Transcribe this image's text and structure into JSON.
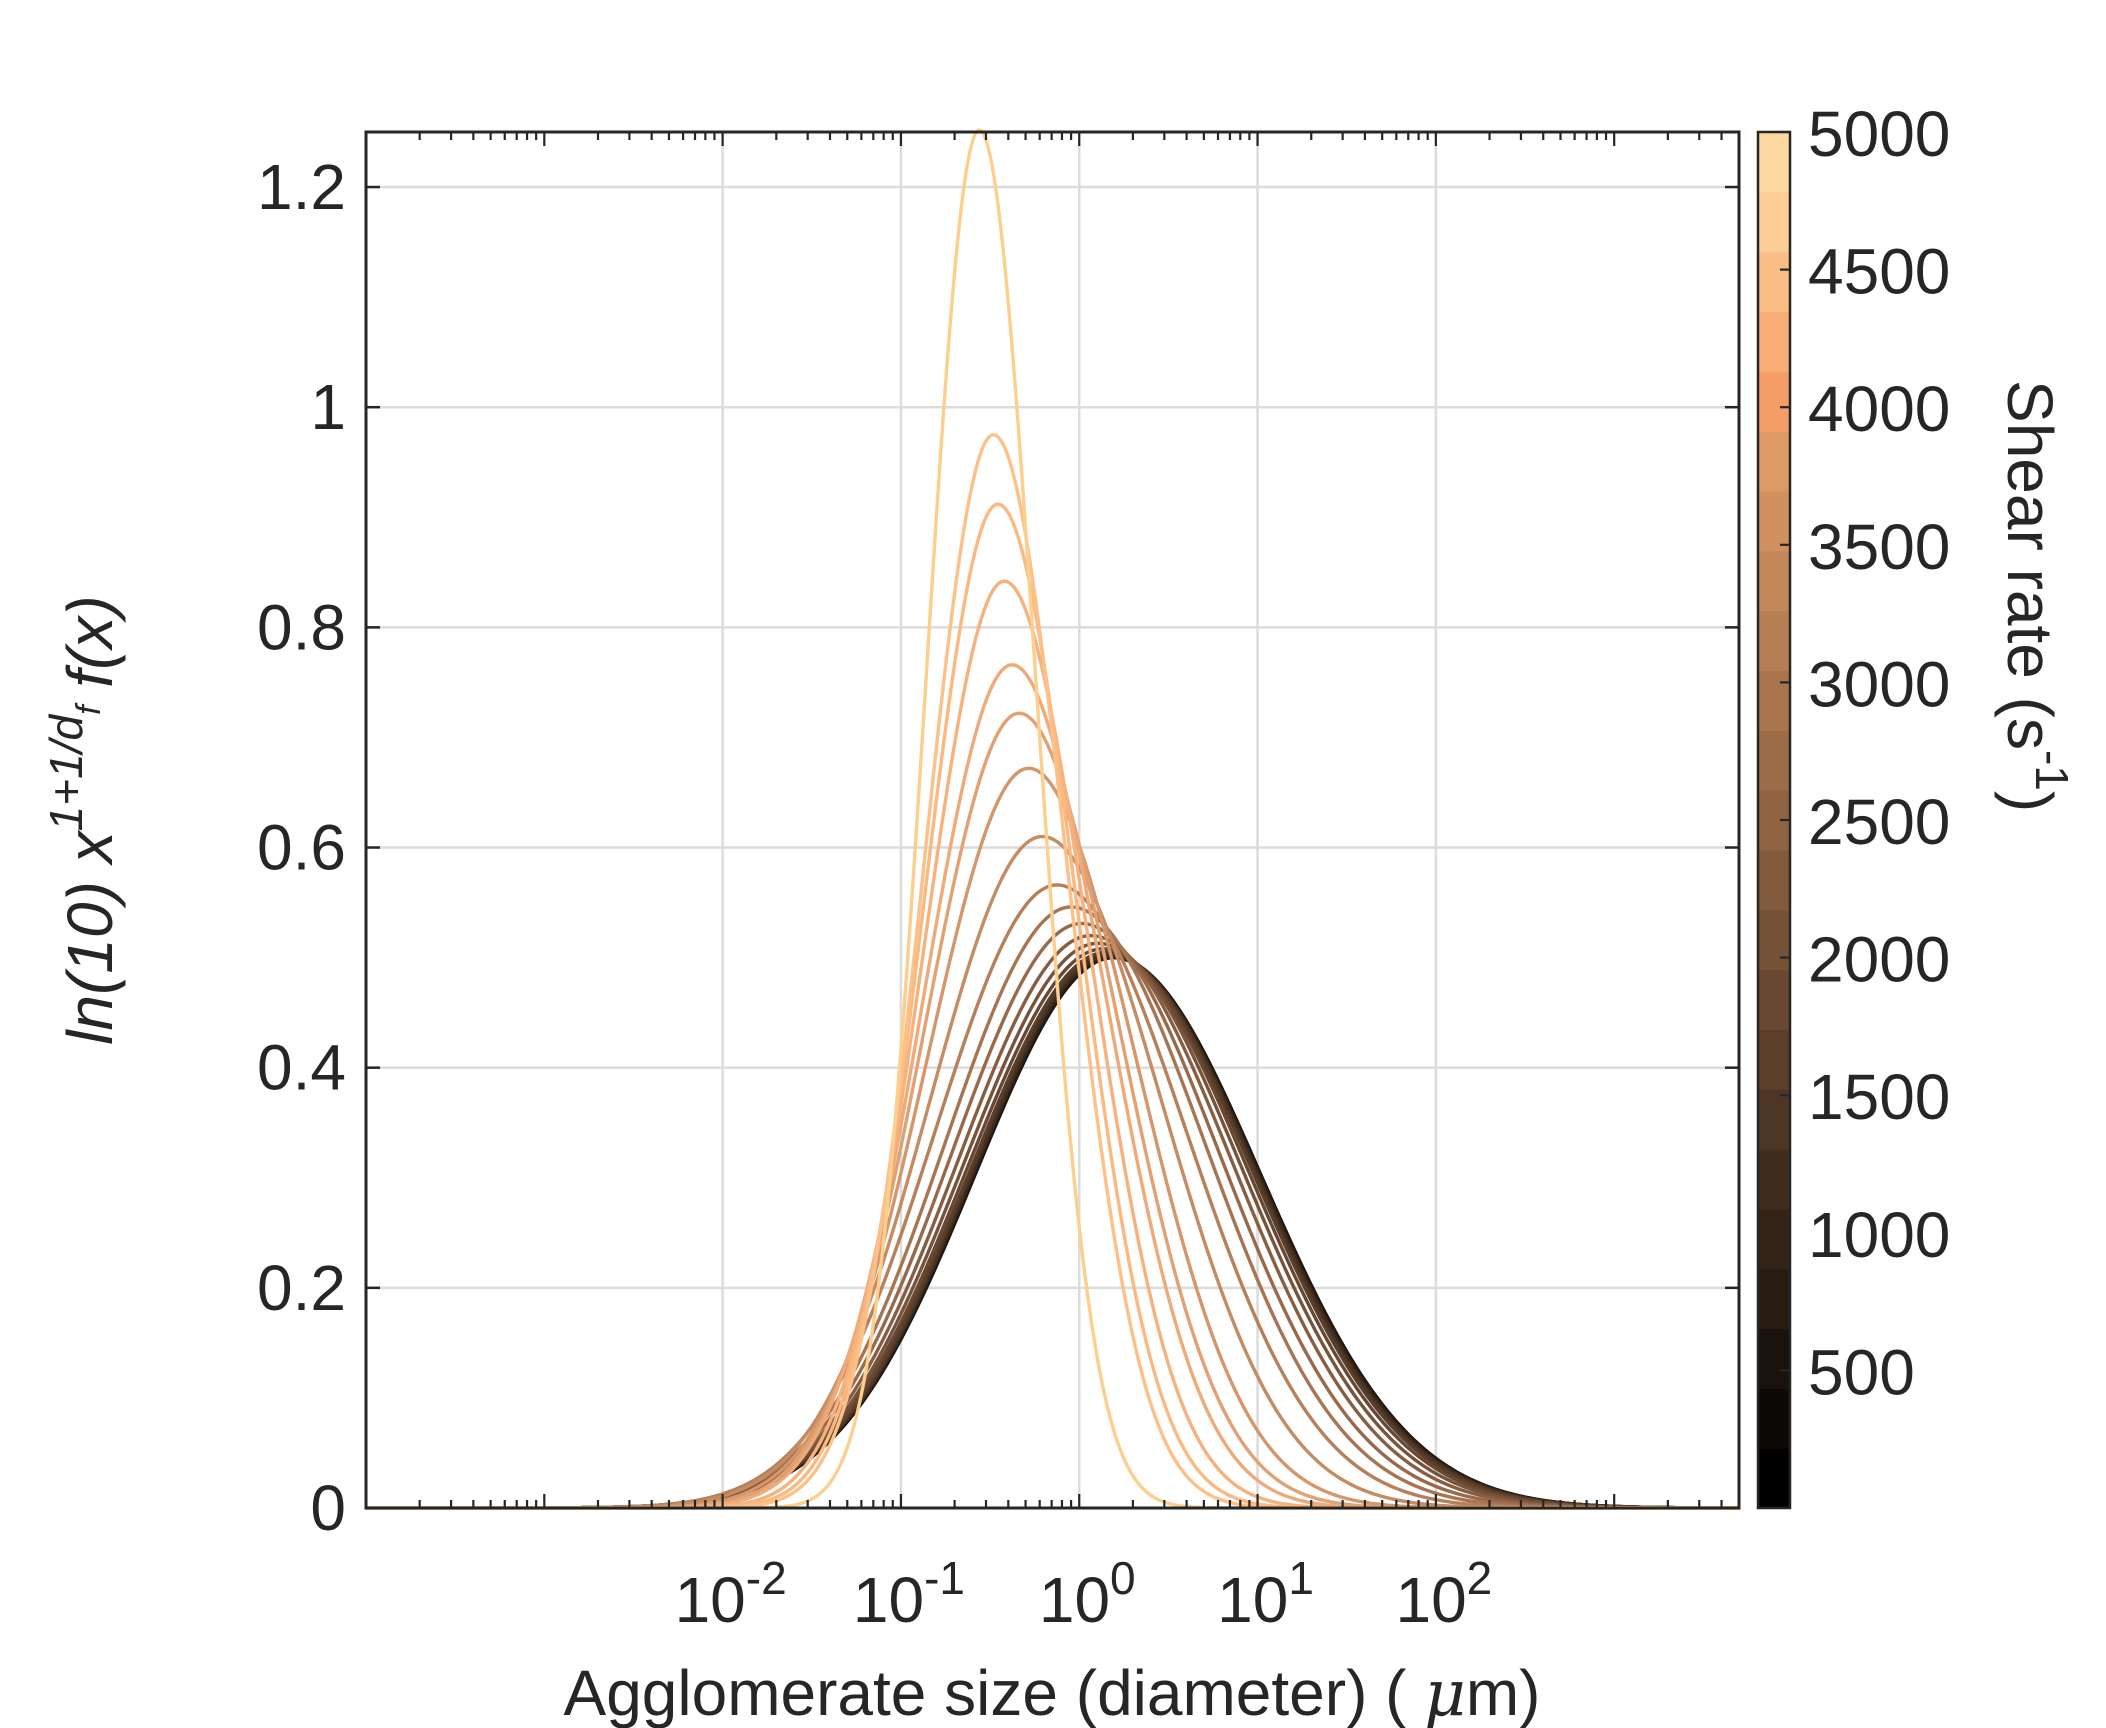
{
  "chart_data": {
    "type": "line",
    "x_scale": "log",
    "xlim_log10": [
      -4,
      3.7
    ],
    "ylim": [
      0,
      1.25
    ],
    "grid": true,
    "legend": "none",
    "xlabel_prefix": "Agglomerate size (diameter) ( ",
    "xlabel_mu": "μ",
    "xlabel_suffix": "m)",
    "ylabel": {
      "main": "ln(10) x",
      "superscript": "1+1/d",
      "super_sub": "f",
      "tail": " f(x)"
    },
    "x_ticks": [
      {
        "base": "10",
        "exp": "-2",
        "log10": -2
      },
      {
        "base": "10",
        "exp": "-1",
        "log10": -1
      },
      {
        "base": "10",
        "exp": "0",
        "log10": 0
      },
      {
        "base": "10",
        "exp": "1",
        "log10": 1
      },
      {
        "base": "10",
        "exp": "2",
        "log10": 2
      }
    ],
    "y_ticks": [
      {
        "label": "0",
        "value": 0
      },
      {
        "label": "0.2",
        "value": 0.2
      },
      {
        "label": "0.4",
        "value": 0.4
      },
      {
        "label": "0.6",
        "value": 0.6
      },
      {
        "label": "0.8",
        "value": 0.8
      },
      {
        "label": "1",
        "value": 1
      },
      {
        "label": "1.2",
        "value": 1.2
      }
    ],
    "series": [
      {
        "shear_rate": 250,
        "peak_x": 1.56,
        "peak_y": 0.5,
        "color": "#110c08"
      },
      {
        "shear_rate": 500,
        "peak_x": 1.55,
        "peak_y": 0.5,
        "color": "#1b130c"
      },
      {
        "shear_rate": 750,
        "peak_x": 1.54,
        "peak_y": 0.5,
        "color": "#251a11"
      },
      {
        "shear_rate": 1000,
        "peak_x": 1.52,
        "peak_y": 0.501,
        "color": "#302217"
      },
      {
        "shear_rate": 1250,
        "peak_x": 1.5,
        "peak_y": 0.502,
        "color": "#3c2b1d"
      },
      {
        "shear_rate": 1500,
        "peak_x": 1.47,
        "peak_y": 0.503,
        "color": "#4a3423"
      },
      {
        "shear_rate": 1750,
        "peak_x": 1.43,
        "peak_y": 0.505,
        "color": "#593e2b"
      },
      {
        "shear_rate": 2000,
        "peak_x": 1.36,
        "peak_y": 0.508,
        "color": "#684832"
      },
      {
        "shear_rate": 2250,
        "peak_x": 1.27,
        "peak_y": 0.513,
        "color": "#78533a"
      },
      {
        "shear_rate": 2500,
        "peak_x": 1.16,
        "peak_y": 0.52,
        "color": "#885e42"
      },
      {
        "shear_rate": 2750,
        "peak_x": 1.03,
        "peak_y": 0.531,
        "color": "#98694a"
      },
      {
        "shear_rate": 3000,
        "peak_x": 0.9,
        "peak_y": 0.546,
        "color": "#a77552"
      },
      {
        "shear_rate": 3250,
        "peak_x": 0.75,
        "peak_y": 0.566,
        "color": "#b6805a"
      },
      {
        "shear_rate": 3500,
        "peak_x": 0.62,
        "peak_y": 0.61,
        "color": "#c58b62"
      },
      {
        "shear_rate": 3750,
        "peak_x": 0.52,
        "peak_y": 0.672,
        "color": "#d4966a"
      },
      {
        "shear_rate": 4000,
        "peak_x": 0.46,
        "peak_y": 0.722,
        "color": "#e2a172"
      },
      {
        "shear_rate": 4250,
        "peak_x": 0.42,
        "peak_y": 0.766,
        "color": "#eeaa78"
      },
      {
        "shear_rate": 4500,
        "peak_x": 0.38,
        "peak_y": 0.842,
        "color": "#f6b27e"
      },
      {
        "shear_rate": 4750,
        "peak_x": 0.35,
        "peak_y": 0.912,
        "color": "#fbb982"
      },
      {
        "shear_rate": 5000,
        "peak_x": 0.33,
        "peak_y": 0.975,
        "color": "#fdc088"
      },
      {
        "shear_rate": 5000,
        "peak_x": 0.275,
        "peak_y": 1.252,
        "color": "#fccf8e"
      }
    ]
  },
  "colorbar": {
    "label_main": "Shear rate (s",
    "label_sup": "-1",
    "label_tail": ")",
    "min": 0,
    "max": 5000,
    "ticks": [
      {
        "label": "500",
        "value": 500
      },
      {
        "label": "1000",
        "value": 1000
      },
      {
        "label": "1500",
        "value": 1500
      },
      {
        "label": "2000",
        "value": 2000
      },
      {
        "label": "2500",
        "value": 2500
      },
      {
        "label": "3000",
        "value": 3000
      },
      {
        "label": "3500",
        "value": 3500
      },
      {
        "label": "4000",
        "value": 4000
      },
      {
        "label": "4500",
        "value": 4500
      },
      {
        "label": "5000",
        "value": 5000
      }
    ],
    "colors": [
      "#000000",
      "#0d0906",
      "#1a120c",
      "#271b12",
      "#342418",
      "#412d1e",
      "#4e3624",
      "#5b3f2a",
      "#684830",
      "#755136",
      "#825a3c",
      "#8f6342",
      "#9c6c48",
      "#a9754e",
      "#b67e54",
      "#c3875a",
      "#d09060",
      "#dd9966",
      "#f59d66",
      "#f8ad76",
      "#fbbd86",
      "#fccd96",
      "#fdd8a0"
    ]
  },
  "colors": {
    "axis": "#262626",
    "grid": "#dcdcdc"
  }
}
